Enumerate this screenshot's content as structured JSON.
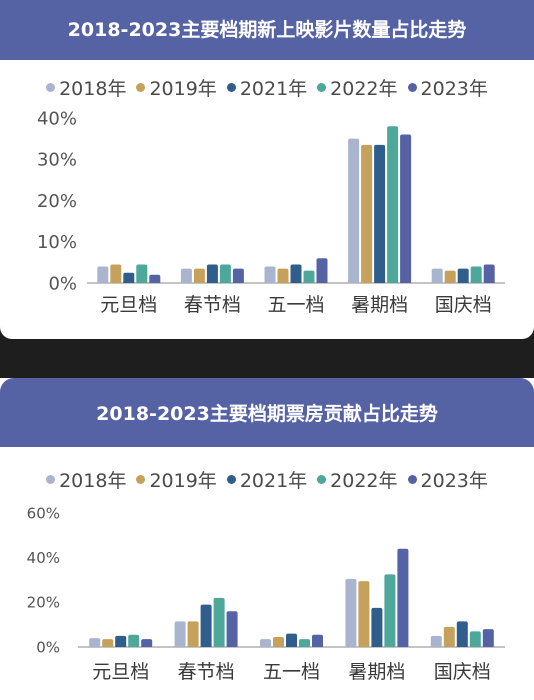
{
  "charts": [
    {
      "title": "2018-2023主要档期新上映影片数量占比走势",
      "legend": [
        "2018年",
        "2019年",
        "2021年",
        "2022年",
        "2023年"
      ],
      "chart_data": {
        "type": "bar",
        "title": "2018-2023主要档期新上映影片数量占比走势",
        "categories": [
          "元旦档",
          "春节档",
          "五一档",
          "暑期档",
          "国庆档"
        ],
        "series": [
          {
            "name": "2018年",
            "color": "#a9b4cf",
            "values": [
              4,
              3.5,
              4,
              35,
              3.5
            ]
          },
          {
            "name": "2019年",
            "color": "#c6a15b",
            "values": [
              4.5,
              3.5,
              3.5,
              33.5,
              3
            ]
          },
          {
            "name": "2021年",
            "color": "#2f5d8c",
            "values": [
              2.5,
              4.5,
              4.5,
              33.5,
              3.5
            ]
          },
          {
            "name": "2022年",
            "color": "#4ea79b",
            "values": [
              4.5,
              4.5,
              3,
              38,
              4
            ]
          },
          {
            "name": "2023年",
            "color": "#5562a3",
            "values": [
              2,
              3.5,
              6,
              36,
              4.5
            ]
          }
        ],
        "yticks": [
          "0%",
          "10%",
          "20%",
          "30%",
          "40%"
        ],
        "ylim": [
          0,
          40
        ],
        "grid": false
      }
    },
    {
      "title": "2018-2023主要档期票房贡献占比走势",
      "legend": [
        "2018年",
        "2019年",
        "2021年",
        "2022年",
        "2023年"
      ],
      "chart_data": {
        "type": "bar",
        "title": "2018-2023主要档期票房贡献占比走势",
        "categories": [
          "元旦档",
          "春节档",
          "五一档",
          "暑期档",
          "国庆档"
        ],
        "series": [
          {
            "name": "2018年",
            "color": "#a9b4cf",
            "values": [
              4,
              11.5,
              3.5,
              30.5,
              5
            ]
          },
          {
            "name": "2019年",
            "color": "#c6a15b",
            "values": [
              3.5,
              11.5,
              4.5,
              29.5,
              9
            ]
          },
          {
            "name": "2021年",
            "color": "#2f5d8c",
            "values": [
              5,
              19,
              6,
              17.5,
              11.5
            ]
          },
          {
            "name": "2022年",
            "color": "#4ea79b",
            "values": [
              5.5,
              22,
              3.5,
              32.5,
              7
            ]
          },
          {
            "name": "2023年",
            "color": "#5562a3",
            "values": [
              3.5,
              16,
              5.5,
              44,
              8
            ]
          }
        ],
        "yticks": [
          "0%",
          "20%",
          "40%",
          "60%"
        ],
        "ylim": [
          0,
          60
        ],
        "grid": false
      }
    }
  ]
}
